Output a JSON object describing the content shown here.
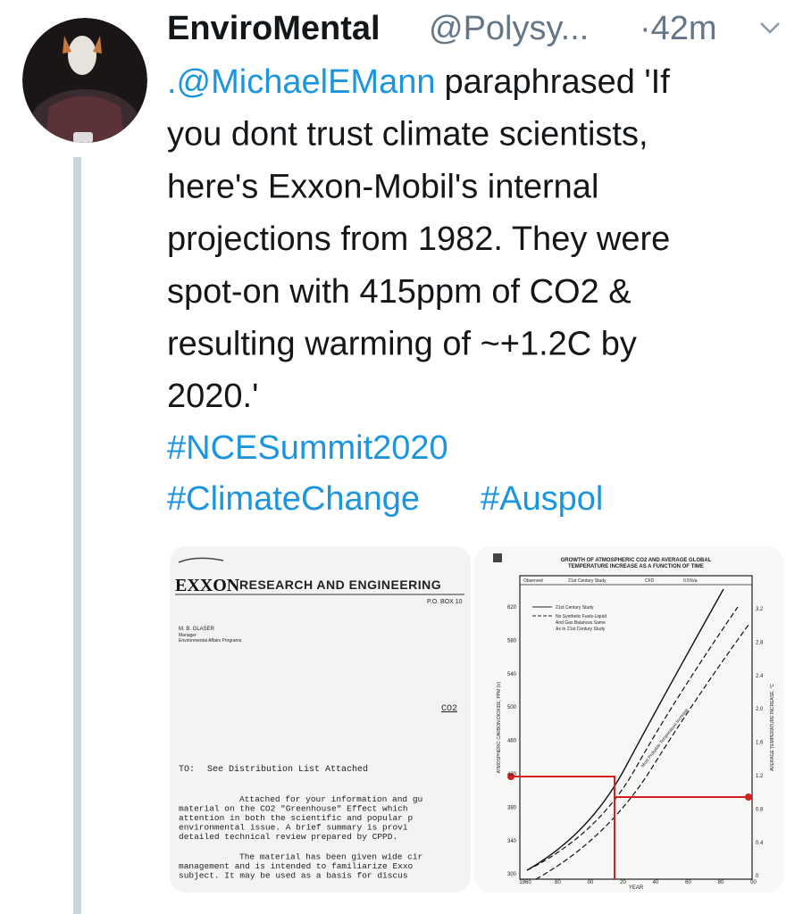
{
  "author": {
    "name": "EnviroMental",
    "handle": "@Polysy...",
    "time": "·42m"
  },
  "tweet": {
    "mention": ".@MichaelEMann",
    "lines": [
      "paraphrased 'If",
      "you dont trust climate scientists,",
      "here's Exxon-Mobil's internal",
      "projections from 1982. They were",
      "spot-on with 415ppm of CO2 &",
      "resulting warming of ~+1.2C by",
      "2020.'"
    ],
    "hashtags": [
      "#NCESummit2020",
      "#ClimateChange",
      "#Auspol"
    ]
  },
  "media": [
    {
      "logo": "EXXON",
      "company": "RESEARCH AND ENGINEERING",
      "address": "P.O. BOX 10",
      "sender": [
        "M. B. GLASER",
        "Manager",
        "Environmental Affairs Programs"
      ],
      "subject": "CO2",
      "to_label": "TO:",
      "to": "See Distribution List Attached",
      "body": [
        "Attached for your information and gu",
        "material on the CO2 \"Greenhouse\" Effect which",
        "attention in both the scientific and popular p",
        "environmental issue.  A brief summary is provi",
        "detailed technical review prepared by CPPD.",
        "The material has been given wide cir",
        "management and is intended to familiarize Exxo",
        "subject.  It may be used as a basis for discus"
      ]
    },
    {
      "title": [
        "GROWTH OF ATMOSPHERIC CO2 AND AVERAGE GLOBAL",
        "TEMPERATURE INCREASE AS A FUNCTION OF TIME"
      ],
      "header": [
        "Observed",
        "21st Century Study",
        "CFD",
        "0.5%/a"
      ],
      "legend": [
        "21st Century Study",
        "No Synthetic Fuels-Liquid",
        "And Gas Balances Same",
        "As In 21st Century Study"
      ],
      "curve_label": "Most Probable Temperature Increase",
      "y_label": "ATMOSPHERIC CARBON DIOXIDE, PPM (V)",
      "y2_label": "AVERAGE TEMPERATURE INCREASE, °C",
      "x_label": "YEAR",
      "yticks": [
        "620",
        "580",
        "540",
        "500",
        "460",
        "420",
        "380",
        "340",
        "300"
      ],
      "y2ticks": [
        "3.2",
        "2.8",
        "2.4",
        "2.0",
        "1.6",
        "1.2",
        "0.8",
        "0.4",
        "0"
      ],
      "xticks": [
        "1960",
        "80",
        "00",
        "20",
        "40",
        "60",
        "80",
        "00"
      ]
    }
  ]
}
